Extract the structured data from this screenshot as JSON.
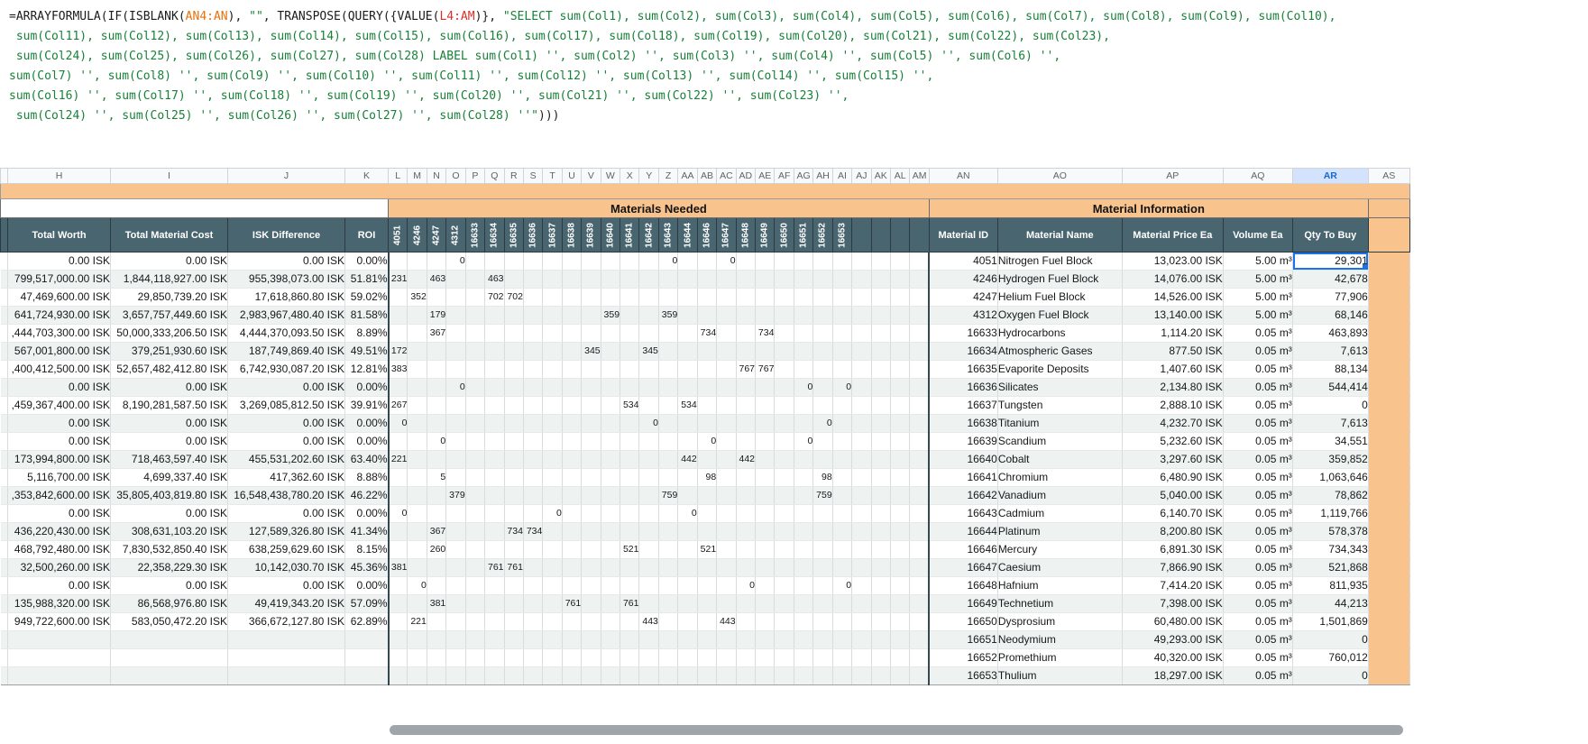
{
  "formula_bar": {
    "lines": [
      [
        [
          "=ARRAYFORMULA(IF(ISBLANK(",
          "fn"
        ],
        [
          "AN4:AN",
          "r1"
        ],
        [
          "), ",
          "fn"
        ],
        [
          "\"\"",
          "str"
        ],
        [
          ", TRANSPOSE(QUERY({VALUE(",
          "fn"
        ],
        [
          "L4:AM",
          "r2"
        ],
        [
          ")}, ",
          "fn"
        ],
        [
          "\"SELECT sum(Col1), sum(Col2), sum(Col3), sum(Col4), sum(Col5), sum(Col6), sum(Col7), sum(Col8), sum(Col9), sum(Col10),",
          "str"
        ]
      ],
      [
        [
          " sum(Col11), sum(Col12), sum(Col13), sum(Col14), sum(Col15), sum(Col16), sum(Col17), sum(Col18), sum(Col19), sum(Col20), sum(Col21), sum(Col22), sum(Col23),",
          "str"
        ]
      ],
      [
        [
          " sum(Col24), sum(Col25), sum(Col26), sum(Col27), sum(Col28) LABEL sum(Col1) '', sum(Col2) '', sum(Col3) '', sum(Col4) '', sum(Col5) '', sum(Col6) '',",
          "str"
        ]
      ],
      [
        [
          "sum(Col7) '', sum(Col8) '', sum(Col9) '', sum(Col10) '', sum(Col11) '', sum(Col12) '', sum(Col13) '', sum(Col14) '', sum(Col15) '',",
          "str"
        ]
      ],
      [
        [
          "sum(Col16) '', sum(Col17) '', sum(Col18) '', sum(Col19) '', sum(Col20) '', sum(Col21) '', sum(Col22) '', sum(Col23) '',",
          "str"
        ]
      ],
      [
        [
          " sum(Col24) '', sum(Col25) '', sum(Col26) '', sum(Col27) '', sum(Col28) ''\"",
          "str"
        ],
        [
          ")))",
          "fn"
        ]
      ]
    ]
  },
  "column_letters": [
    "H",
    "I",
    "J",
    "K",
    "L",
    "M",
    "N",
    "O",
    "P",
    "Q",
    "R",
    "S",
    "T",
    "U",
    "V",
    "W",
    "X",
    "Y",
    "Z",
    "AA",
    "AB",
    "AC",
    "AD",
    "AE",
    "AF",
    "AG",
    "AH",
    "AI",
    "AJ",
    "AK",
    "AL",
    "AM",
    "AN",
    "AO",
    "AP",
    "AQ",
    "AR",
    "AS"
  ],
  "active_column": "AR",
  "sheet": {
    "sections": {
      "materials_needed": "Materials Needed",
      "material_information": "Material Information"
    },
    "left_headers": [
      "Total Worth",
      "Total Material Cost",
      "ISK Difference",
      "ROI"
    ],
    "needed_column_letters": [
      "L",
      "M",
      "N",
      "O",
      "P",
      "Q",
      "R",
      "S",
      "T",
      "U",
      "V",
      "W",
      "X",
      "Y",
      "Z",
      "AA",
      "AB",
      "AC",
      "AD",
      "AE",
      "AF",
      "AG",
      "AH",
      "AI",
      "AJ",
      "AK",
      "AL",
      "AM"
    ],
    "needed_ids": [
      "4051",
      "4246",
      "4247",
      "4312",
      "16633",
      "16634",
      "16635",
      "16636",
      "16637",
      "16638",
      "16639",
      "16640",
      "16641",
      "16642",
      "16643",
      "16644",
      "16646",
      "16647",
      "16648",
      "16649",
      "16650",
      "16651",
      "16652",
      "16653"
    ],
    "info_headers": [
      "Material ID",
      "Material Name",
      "Material Price Ea",
      "Volume Ea",
      "Qty To Buy"
    ],
    "rows": [
      {
        "worth": "0.00 ISK",
        "cost": "0.00 ISK",
        "diff": "0.00 ISK",
        "roi": "0.00%",
        "needed": {
          "O": "0",
          "Z": "0",
          "AC": "0"
        },
        "id": "4051",
        "name": "Nitrogen Fuel Block",
        "price": "13,023.00 ISK",
        "vol": "5.00 m³",
        "qty": "29,301",
        "sel": true
      },
      {
        "worth": "799,517,000.00 ISK",
        "cost": "1,844,118,927.00 ISK",
        "diff": "955,398,073.00 ISK",
        "roi": "51.81%",
        "needed": {
          "L": "231",
          "N": "463",
          "Q": "463"
        },
        "id": "4246",
        "name": "Hydrogen Fuel Block",
        "price": "14,076.00 ISK",
        "vol": "5.00 m³",
        "qty": "42,678"
      },
      {
        "worth": "47,469,600.00 ISK",
        "cost": "29,850,739.20 ISK",
        "diff": "17,618,860.80 ISK",
        "roi": "59.02%",
        "needed": {
          "M": "352",
          "Q": "702",
          "R": "702"
        },
        "id": "4247",
        "name": "Helium Fuel Block",
        "price": "14,526.00 ISK",
        "vol": "5.00 m³",
        "qty": "77,906"
      },
      {
        "worth": "641,724,930.00 ISK",
        "cost": "3,657,757,449.60 ISK",
        "diff": "2,983,967,480.40 ISK",
        "roi": "81.58%",
        "needed": {
          "N": "179",
          "W": "359",
          "Z": "359"
        },
        "id": "4312",
        "name": "Oxygen Fuel Block",
        "price": "13,140.00 ISK",
        "vol": "5.00 m³",
        "qty": "68,146"
      },
      {
        "worth": ",444,703,300.00 ISK",
        "cost": "50,000,333,206.50 ISK",
        "diff": "4,444,370,093.50 ISK",
        "roi": "8.89%",
        "needed": {
          "N": "367",
          "AB": "734",
          "AE": "734"
        },
        "id": "16633",
        "name": "Hydrocarbons",
        "price": "1,114.20 ISK",
        "vol": "0.05 m³",
        "qty": "463,893"
      },
      {
        "worth": "567,001,800.00 ISK",
        "cost": "379,251,930.60 ISK",
        "diff": "187,749,869.40 ISK",
        "roi": "49.51%",
        "needed": {
          "L": "172",
          "V": "345",
          "Y": "345"
        },
        "id": "16634",
        "name": "Atmospheric Gases",
        "price": "877.50 ISK",
        "vol": "0.05 m³",
        "qty": "7,613"
      },
      {
        "worth": ",400,412,500.00 ISK",
        "cost": "52,657,482,412.80 ISK",
        "diff": "6,742,930,087.20 ISK",
        "roi": "12.81%",
        "needed": {
          "L": "383",
          "AD": "767",
          "AE": "767"
        },
        "id": "16635",
        "name": "Evaporite Deposits",
        "price": "1,407.60 ISK",
        "vol": "0.05 m³",
        "qty": "88,134"
      },
      {
        "worth": "0.00 ISK",
        "cost": "0.00 ISK",
        "diff": "0.00 ISK",
        "roi": "0.00%",
        "needed": {
          "O": "0",
          "AG": "0",
          "AI": "0"
        },
        "id": "16636",
        "name": "Silicates",
        "price": "2,134.80 ISK",
        "vol": "0.05 m³",
        "qty": "544,414"
      },
      {
        "worth": ",459,367,400.00 ISK",
        "cost": "8,190,281,587.50 ISK",
        "diff": "3,269,085,812.50 ISK",
        "roi": "39.91%",
        "needed": {
          "L": "267",
          "X": "534",
          "AA": "534"
        },
        "id": "16637",
        "name": "Tungsten",
        "price": "2,888.10 ISK",
        "vol": "0.05 m³",
        "qty": "0"
      },
      {
        "worth": "0.00 ISK",
        "cost": "0.00 ISK",
        "diff": "0.00 ISK",
        "roi": "0.00%",
        "needed": {
          "L": "0",
          "Y": "0",
          "AH": "0"
        },
        "id": "16638",
        "name": "Titanium",
        "price": "4,232.70 ISK",
        "vol": "0.05 m³",
        "qty": "7,613"
      },
      {
        "worth": "0.00 ISK",
        "cost": "0.00 ISK",
        "diff": "0.00 ISK",
        "roi": "0.00%",
        "needed": {
          "N": "0",
          "AB": "0",
          "AG": "0"
        },
        "id": "16639",
        "name": "Scandium",
        "price": "5,232.60 ISK",
        "vol": "0.05 m³",
        "qty": "34,551"
      },
      {
        "worth": "173,994,800.00 ISK",
        "cost": "718,463,597.40 ISK",
        "diff": "455,531,202.60 ISK",
        "roi": "63.40%",
        "needed": {
          "L": "221",
          "AA": "442",
          "AD": "442"
        },
        "id": "16640",
        "name": "Cobalt",
        "price": "3,297.60 ISK",
        "vol": "0.05 m³",
        "qty": "359,852"
      },
      {
        "worth": "5,116,700.00 ISK",
        "cost": "4,699,337.40 ISK",
        "diff": "417,362.60 ISK",
        "roi": "8.88%",
        "needed": {
          "N": "5",
          "AB": "98",
          "AH": "98"
        },
        "id": "16641",
        "name": "Chromium",
        "price": "6,480.90 ISK",
        "vol": "0.05 m³",
        "qty": "1,063,646"
      },
      {
        "worth": ",353,842,600.00 ISK",
        "cost": "35,805,403,819.80 ISK",
        "diff": "16,548,438,780.20 ISK",
        "roi": "46.22%",
        "needed": {
          "O": "379",
          "Z": "759",
          "AH": "759"
        },
        "id": "16642",
        "name": "Vanadium",
        "price": "5,040.00 ISK",
        "vol": "0.05 m³",
        "qty": "78,862"
      },
      {
        "worth": "0.00 ISK",
        "cost": "0.00 ISK",
        "diff": "0.00 ISK",
        "roi": "0.00%",
        "needed": {
          "L": "0",
          "T": "0",
          "AA": "0"
        },
        "id": "16643",
        "name": "Cadmium",
        "price": "6,140.70 ISK",
        "vol": "0.05 m³",
        "qty": "1,119,766"
      },
      {
        "worth": "436,220,430.00 ISK",
        "cost": "308,631,103.20 ISK",
        "diff": "127,589,326.80 ISK",
        "roi": "41.34%",
        "needed": {
          "N": "367",
          "R": "734",
          "S": "734"
        },
        "id": "16644",
        "name": "Platinum",
        "price": "8,200.80 ISK",
        "vol": "0.05 m³",
        "qty": "578,378"
      },
      {
        "worth": "468,792,480.00 ISK",
        "cost": "7,830,532,850.40 ISK",
        "diff": "638,259,629.60 ISK",
        "roi": "8.15%",
        "needed": {
          "N": "260",
          "X": "521",
          "AB": "521"
        },
        "id": "16646",
        "name": "Mercury",
        "price": "6,891.30 ISK",
        "vol": "0.05 m³",
        "qty": "734,343"
      },
      {
        "worth": "32,500,260.00 ISK",
        "cost": "22,358,229.30 ISK",
        "diff": "10,142,030.70 ISK",
        "roi": "45.36%",
        "needed": {
          "L": "381",
          "Q": "761",
          "R": "761"
        },
        "id": "16647",
        "name": "Caesium",
        "price": "7,866.90 ISK",
        "vol": "0.05 m³",
        "qty": "521,868"
      },
      {
        "worth": "0.00 ISK",
        "cost": "0.00 ISK",
        "diff": "0.00 ISK",
        "roi": "0.00%",
        "needed": {
          "M": "0",
          "AD": "0",
          "AI": "0"
        },
        "id": "16648",
        "name": "Hafnium",
        "price": "7,414.20 ISK",
        "vol": "0.05 m³",
        "qty": "811,935"
      },
      {
        "worth": "135,988,320.00 ISK",
        "cost": "86,568,976.80 ISK",
        "diff": "49,419,343.20 ISK",
        "roi": "57.09%",
        "needed": {
          "N": "381",
          "U": "761",
          "X": "761"
        },
        "id": "16649",
        "name": "Technetium",
        "price": "7,398.00 ISK",
        "vol": "0.05 m³",
        "qty": "44,213"
      },
      {
        "worth": "949,722,600.00 ISK",
        "cost": "583,050,472.20 ISK",
        "diff": "366,672,127.80 ISK",
        "roi": "62.89%",
        "needed": {
          "M": "221",
          "Y": "443",
          "AC": "443"
        },
        "id": "16650",
        "name": "Dysprosium",
        "price": "60,480.00 ISK",
        "vol": "0.05 m³",
        "qty": "1,501,869"
      },
      {
        "worth": "",
        "cost": "",
        "diff": "",
        "roi": "",
        "needed": {},
        "id": "16651",
        "name": "Neodymium",
        "price": "49,293.00 ISK",
        "vol": "0.05 m³",
        "qty": "0"
      },
      {
        "worth": "",
        "cost": "",
        "diff": "",
        "roi": "",
        "needed": {},
        "id": "16652",
        "name": "Promethium",
        "price": "40,320.00 ISK",
        "vol": "0.05 m³",
        "qty": "760,012"
      },
      {
        "worth": "",
        "cost": "",
        "diff": "",
        "roi": "",
        "needed": {},
        "id": "16653",
        "name": "Thulium",
        "price": "18,297.00 ISK",
        "vol": "0.05 m³",
        "qty": "0"
      }
    ]
  },
  "colors": {
    "band_orange": "#f8c38d",
    "header_slate": "#49656f",
    "selection_blue": "#1a73e8",
    "row_band": "#eef3f2",
    "formula_string_green": "#188038",
    "formula_range_orange": "#e8710a",
    "formula_range_red": "#d93025"
  }
}
